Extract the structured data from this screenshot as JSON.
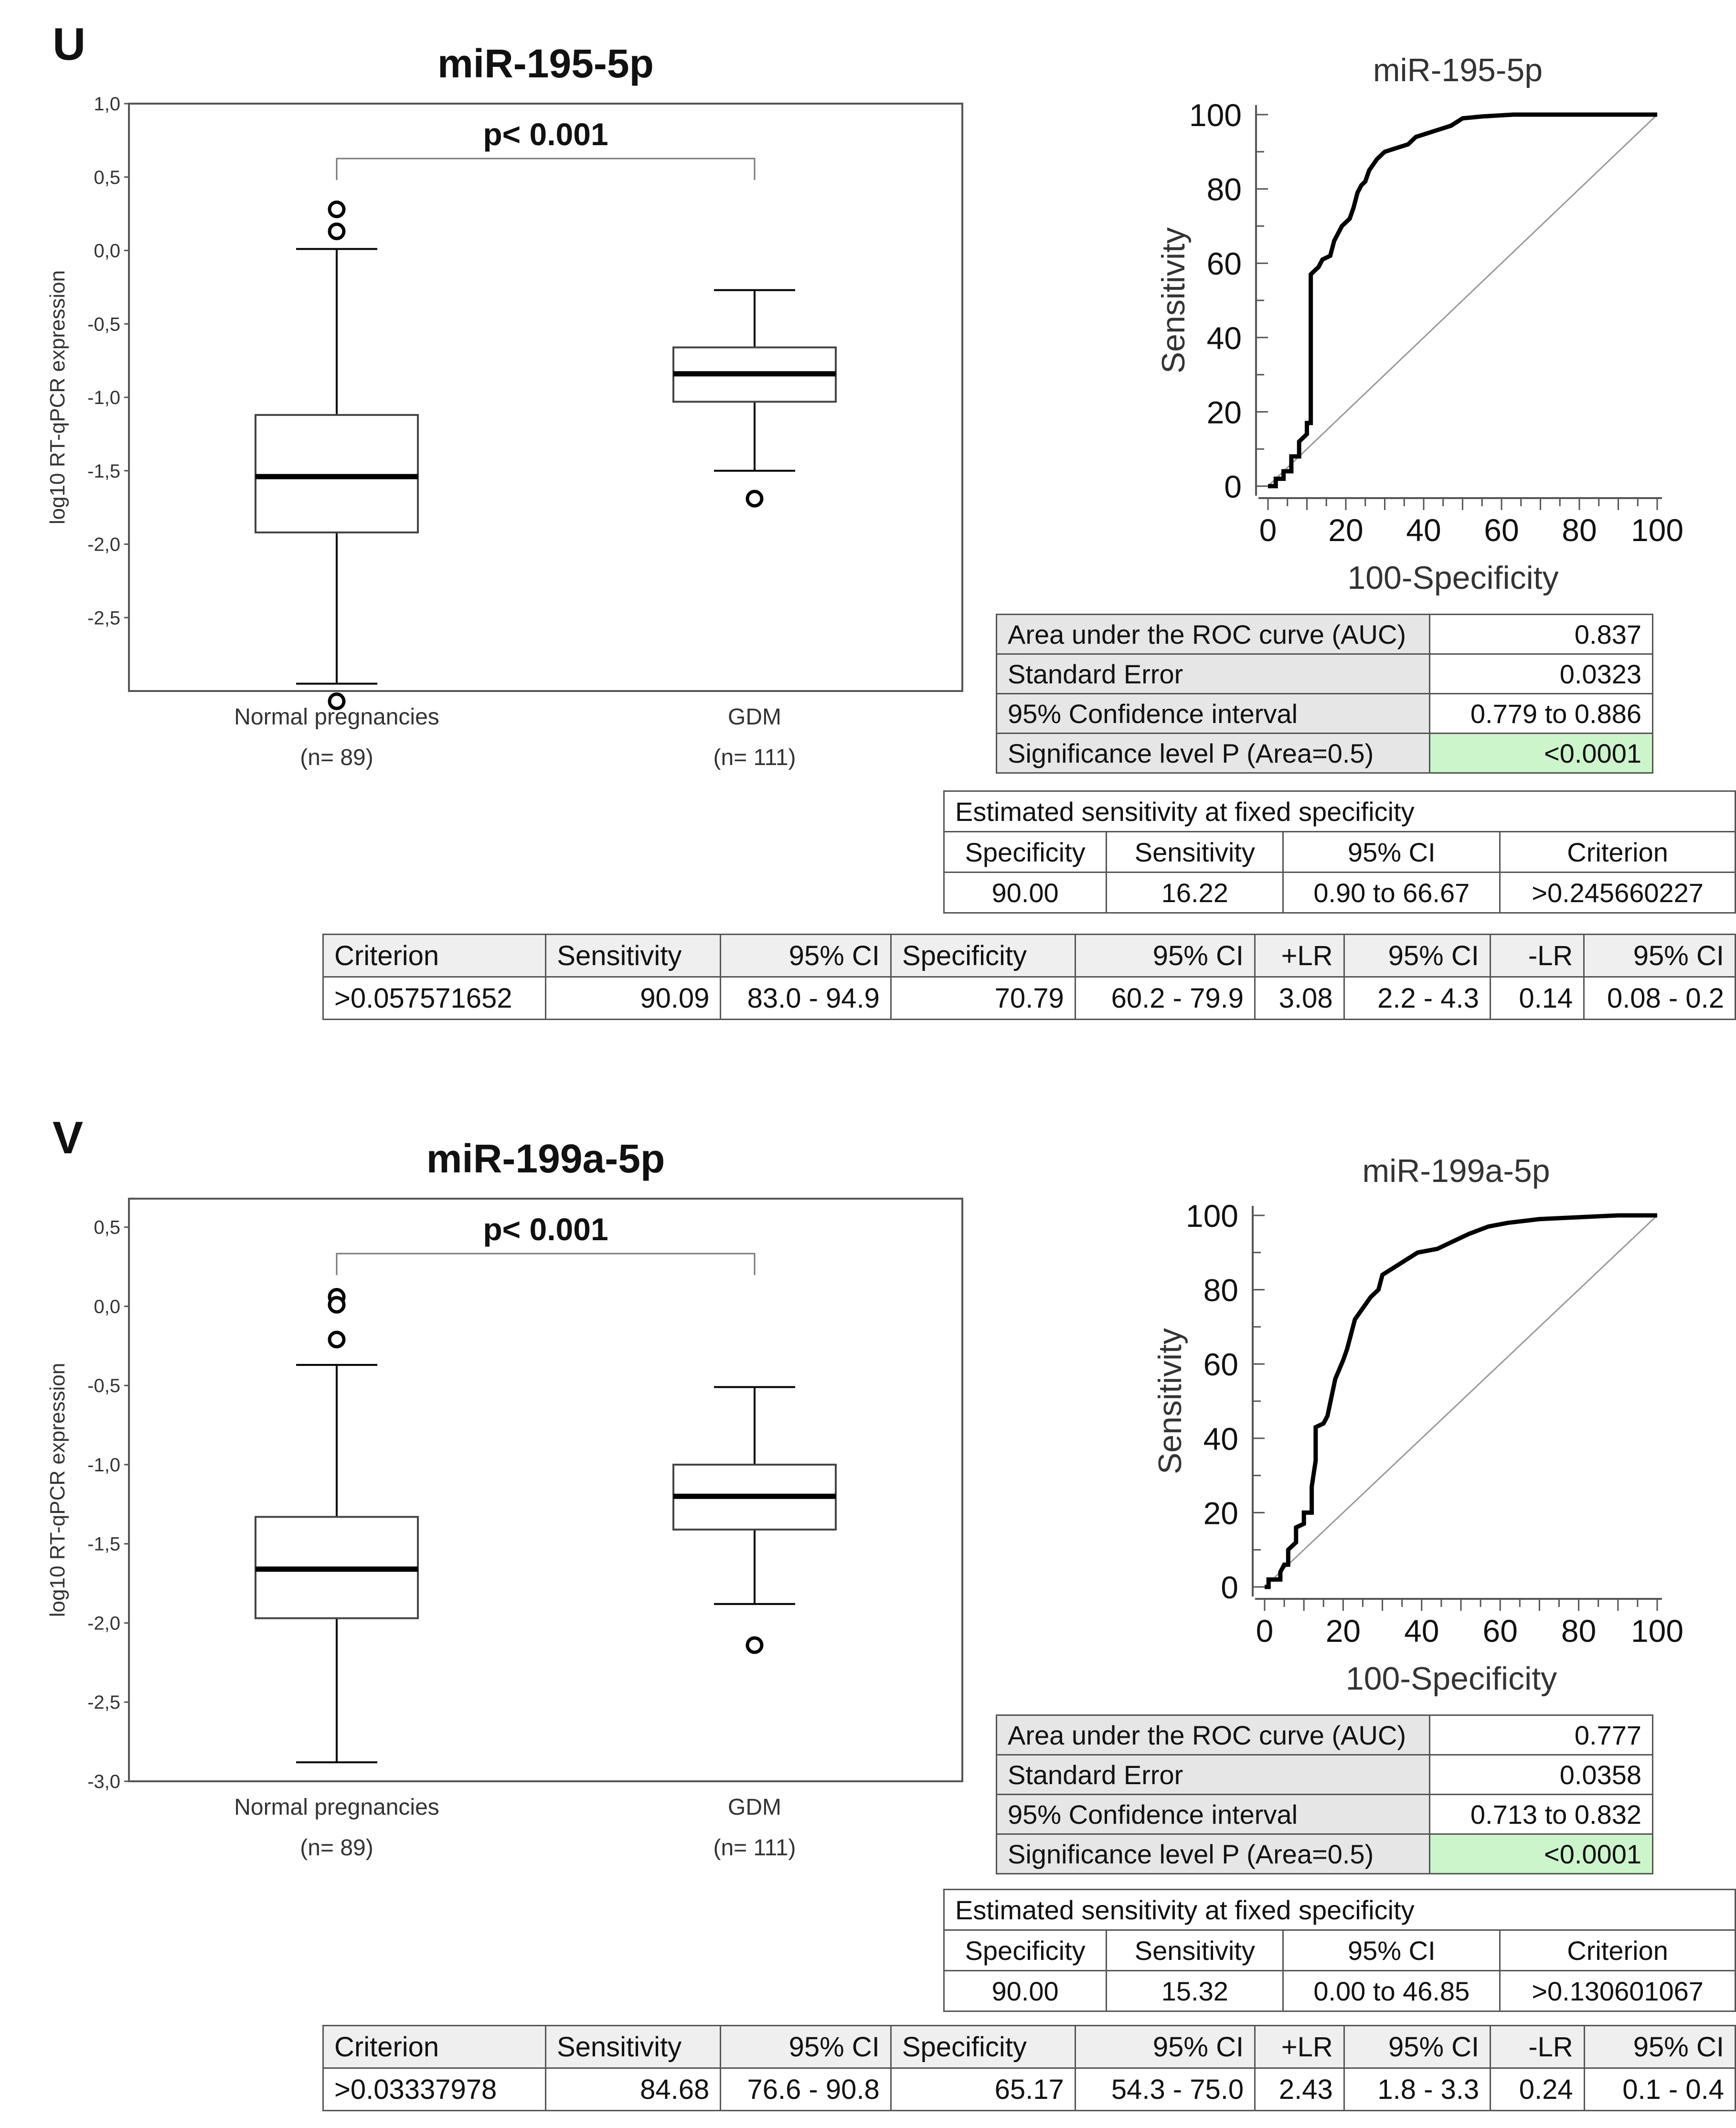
{
  "panels": [
    {
      "letter": "U",
      "box_title": "miR-195-5p",
      "ylabel": "log10 RT-qPCR expression",
      "yticks": [
        "1,0",
        "0,5",
        "0,0",
        "-0,5",
        "-1,0",
        "-1,5",
        "-2,0",
        "-2,5"
      ],
      "pvalue": "p< 0.001",
      "groups": [
        {
          "name": "Normal pregnancies",
          "n": "(n= 89)"
        },
        {
          "name": "GDM",
          "n": "(n= 111)"
        }
      ],
      "roc_title": "miR-195-5p",
      "roc_xlabel": "100-Specificity",
      "roc_ylabel": "Sensitivity",
      "roc_ticks": [
        "0",
        "20",
        "40",
        "60",
        "80",
        "100"
      ],
      "auc_table": [
        {
          "label": "Area under the ROC curve (AUC)",
          "value": "0.837"
        },
        {
          "label": "Standard Error",
          "value": "0.0323"
        },
        {
          "label": "95% Confidence interval",
          "value": "0.779 to 0.886"
        },
        {
          "label": "Significance level P (Area=0.5)",
          "value": "<0.0001"
        }
      ],
      "est_title": "Estimated sensitivity at fixed specificity",
      "est_headers": [
        "Specificity",
        "Sensitivity",
        "95% CI",
        "Criterion"
      ],
      "est_row": [
        "90.00",
        "16.22",
        "0.90 to 66.67",
        ">0.245660227"
      ],
      "crit_headers": [
        "Criterion",
        "Sensitivity",
        "95% CI",
        "Specificity",
        "95% CI",
        "+LR",
        "95% CI",
        "-LR",
        "95% CI"
      ],
      "crit_row": [
        ">0.057571652",
        "90.09",
        "83.0 - 94.9",
        "70.79",
        "60.2 - 79.9",
        "3.08",
        "2.2 - 4.3",
        "0.14",
        "0.08 - 0.2"
      ]
    },
    {
      "letter": "V",
      "box_title": "miR-199a-5p",
      "ylabel": "log10 RT-qPCR expression",
      "yticks": [
        "0,5",
        "0,0",
        "-0,5",
        "-1,0",
        "-1,5",
        "-2,0",
        "-2,5",
        "-3,0"
      ],
      "pvalue": "p< 0.001",
      "groups": [
        {
          "name": "Normal pregnancies",
          "n": "(n= 89)"
        },
        {
          "name": "GDM",
          "n": "(n= 111)"
        }
      ],
      "roc_title": "miR-199a-5p",
      "roc_xlabel": "100-Specificity",
      "roc_ylabel": "Sensitivity",
      "roc_ticks": [
        "0",
        "20",
        "40",
        "60",
        "80",
        "100"
      ],
      "auc_table": [
        {
          "label": "Area under the ROC curve (AUC)",
          "value": "0.777"
        },
        {
          "label": "Standard Error",
          "value": "0.0358"
        },
        {
          "label": "95% Confidence interval",
          "value": "0.713 to 0.832"
        },
        {
          "label": "Significance level P (Area=0.5)",
          "value": "<0.0001"
        }
      ],
      "est_title": "Estimated sensitivity at fixed specificity",
      "est_headers": [
        "Specificity",
        "Sensitivity",
        "95% CI",
        "Criterion"
      ],
      "est_row": [
        "90.00",
        "15.32",
        "0.00 to 46.85",
        ">0.130601067"
      ],
      "crit_headers": [
        "Criterion",
        "Sensitivity",
        "95% CI",
        "Specificity",
        "95% CI",
        "+LR",
        "95% CI",
        "-LR",
        "95% CI"
      ],
      "crit_row": [
        ">0.03337978",
        "84.68",
        "76.6 - 90.8",
        "65.17",
        "54.3 - 75.0",
        "2.43",
        "1.8 - 3.3",
        "0.24",
        "0.1 - 0.4"
      ]
    }
  ],
  "colors": {
    "auc_highlight": "#ccf5cc",
    "table_label_bg": "#e6e6e6",
    "box_line": "#000000"
  },
  "chart_data": [
    {
      "type": "box",
      "title": "miR-195-5p",
      "ylabel": "log10 RT-qPCR expression",
      "ylim": [
        -3.0,
        1.0
      ],
      "categories": [
        "Normal pregnancies",
        "GDM"
      ],
      "boxes": [
        {
          "whisker_low": -2.95,
          "q1": -1.92,
          "median": -1.54,
          "q3": -1.12,
          "whisker_high": 0.01,
          "outliers": [
            0.28,
            0.13,
            -3.07
          ]
        },
        {
          "whisker_low": -1.5,
          "q1": -1.03,
          "median": -0.84,
          "q3": -0.66,
          "whisker_high": -0.27,
          "outliers": [
            -1.69
          ]
        }
      ]
    },
    {
      "type": "line",
      "title": "miR-195-5p",
      "xlabel": "100-Specificity",
      "ylabel": "Sensitivity",
      "xlim": [
        0,
        100
      ],
      "ylim": [
        0,
        100
      ],
      "roc": [
        [
          0,
          0
        ],
        [
          2,
          0
        ],
        [
          2,
          2
        ],
        [
          4,
          2
        ],
        [
          4,
          4
        ],
        [
          6,
          4
        ],
        [
          6,
          8
        ],
        [
          8,
          8
        ],
        [
          8,
          12
        ],
        [
          10,
          14
        ],
        [
          10,
          17
        ],
        [
          11,
          17
        ],
        [
          11,
          57
        ],
        [
          13,
          59
        ],
        [
          14,
          61
        ],
        [
          16,
          62
        ],
        [
          17,
          66
        ],
        [
          19,
          70
        ],
        [
          21,
          72
        ],
        [
          22,
          75
        ],
        [
          23,
          79
        ],
        [
          24,
          81
        ],
        [
          25,
          82
        ],
        [
          26,
          85
        ],
        [
          28,
          88
        ],
        [
          30,
          90
        ],
        [
          33,
          91
        ],
        [
          36,
          92
        ],
        [
          38,
          94
        ],
        [
          41,
          95
        ],
        [
          44,
          96
        ],
        [
          47,
          97
        ],
        [
          50,
          99
        ],
        [
          55,
          99.5
        ],
        [
          63,
          100
        ],
        [
          100,
          100
        ]
      ],
      "reference": [
        [
          0,
          0
        ],
        [
          100,
          100
        ]
      ]
    },
    {
      "type": "box",
      "title": "miR-199a-5p",
      "ylabel": "log10 RT-qPCR expression",
      "ylim": [
        -3.0,
        0.5
      ],
      "categories": [
        "Normal pregnancies",
        "GDM"
      ],
      "boxes": [
        {
          "whisker_low": -2.88,
          "q1": -1.97,
          "median": -1.66,
          "q3": -1.33,
          "whisker_high": -0.37,
          "outliers": [
            0.06,
            0.01,
            -0.21
          ]
        },
        {
          "whisker_low": -1.88,
          "q1": -1.41,
          "median": -1.2,
          "q3": -1.0,
          "whisker_high": -0.51,
          "outliers": [
            -2.14
          ]
        }
      ]
    },
    {
      "type": "line",
      "title": "miR-199a-5p",
      "xlabel": "100-Specificity",
      "ylabel": "Sensitivity",
      "xlim": [
        0,
        100
      ],
      "ylim": [
        0,
        100
      ],
      "roc": [
        [
          0,
          0
        ],
        [
          1,
          0
        ],
        [
          1,
          2
        ],
        [
          4,
          2
        ],
        [
          4,
          4
        ],
        [
          5,
          6
        ],
        [
          6,
          6
        ],
        [
          6,
          10
        ],
        [
          8,
          12
        ],
        [
          8,
          16
        ],
        [
          10,
          17
        ],
        [
          10,
          20
        ],
        [
          12,
          20
        ],
        [
          12,
          27
        ],
        [
          13,
          34
        ],
        [
          13,
          43
        ],
        [
          15,
          44
        ],
        [
          16,
          46
        ],
        [
          17,
          51
        ],
        [
          18,
          56
        ],
        [
          20,
          61
        ],
        [
          21,
          64
        ],
        [
          22,
          68
        ],
        [
          23,
          72
        ],
        [
          25,
          75
        ],
        [
          27,
          78
        ],
        [
          29,
          80
        ],
        [
          30,
          84
        ],
        [
          33,
          86
        ],
        [
          36,
          88
        ],
        [
          39,
          90
        ],
        [
          44,
          91
        ],
        [
          48,
          93
        ],
        [
          52,
          95
        ],
        [
          57,
          97
        ],
        [
          62,
          98
        ],
        [
          70,
          99
        ],
        [
          80,
          99.5
        ],
        [
          90,
          100
        ],
        [
          100,
          100
        ]
      ],
      "reference": [
        [
          0,
          0
        ],
        [
          100,
          100
        ]
      ]
    }
  ]
}
